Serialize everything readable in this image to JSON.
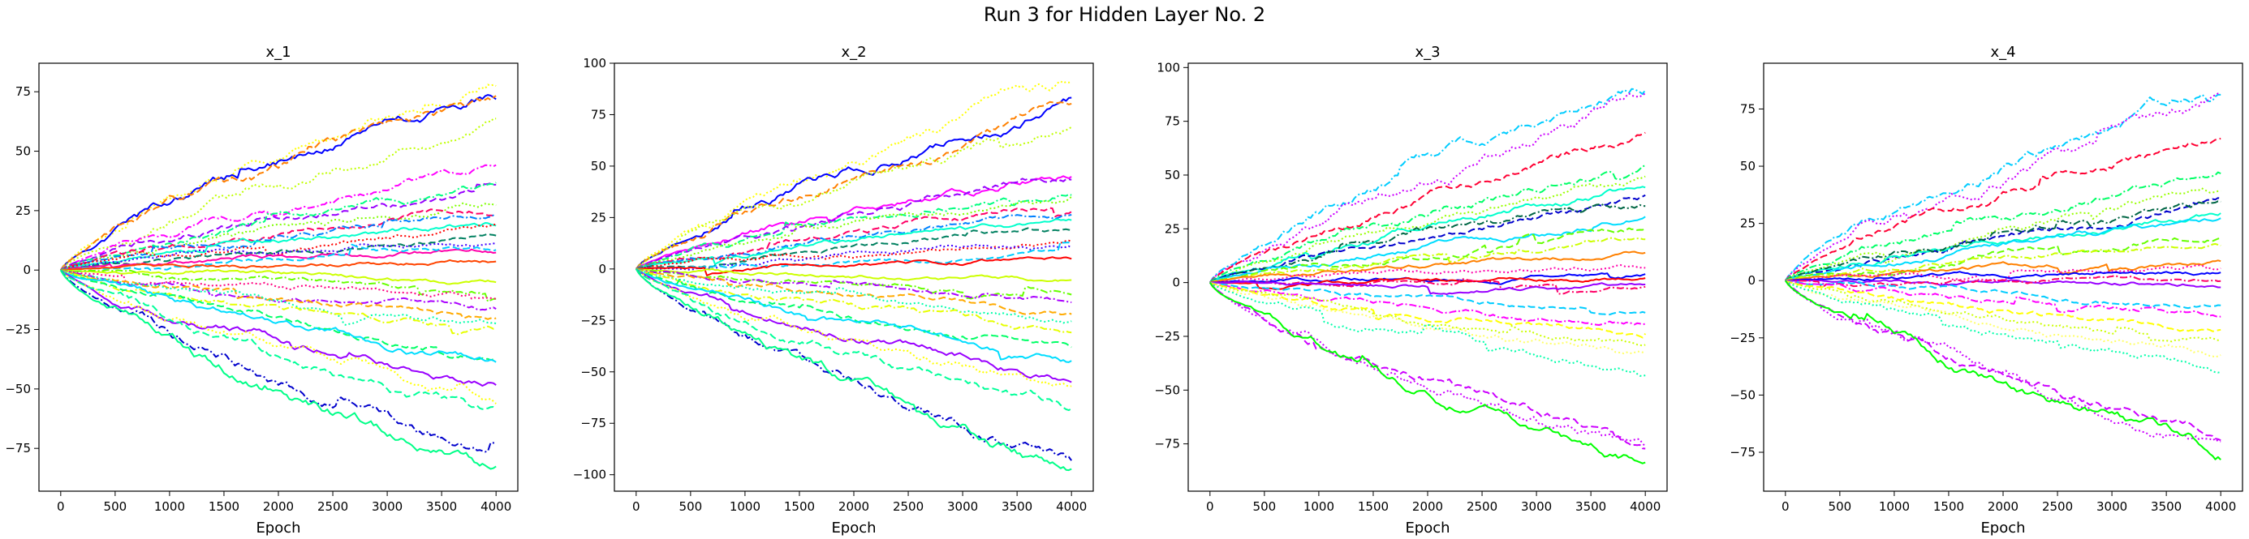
{
  "figure": {
    "title": "Run 3 for Hidden Layer No. 2"
  },
  "chart_data": [
    {
      "type": "line",
      "title": "x_1",
      "xlabel": "Epoch",
      "ylabel": "",
      "xlim": [
        -200,
        4200
      ],
      "ylim": [
        -93,
        87
      ],
      "xticks": [
        0,
        500,
        1000,
        1500,
        2000,
        2500,
        3000,
        3500,
        4000
      ],
      "yticks": [
        -75,
        -50,
        -25,
        0,
        25,
        50,
        75
      ],
      "grid": false,
      "series_finals": [
        {
          "color": "#ffff00",
          "style": "dotted",
          "final": 80
        },
        {
          "color": "#0000ff",
          "style": "solid",
          "final": 74
        },
        {
          "color": "#ff8000",
          "style": "dashed",
          "final": 70
        },
        {
          "color": "#c0ff00",
          "style": "dotted",
          "final": 62
        },
        {
          "color": "#ff00ff",
          "style": "dashdot",
          "final": 42
        },
        {
          "color": "#9900ff",
          "style": "dashed",
          "final": 37
        },
        {
          "color": "#00ff80",
          "style": "dashdot",
          "final": 34
        },
        {
          "color": "#80ff00",
          "style": "dotted",
          "final": 30
        },
        {
          "color": "#ff0066",
          "style": "dashed",
          "final": 26
        },
        {
          "color": "#0080ff",
          "style": "dashdot",
          "final": 22
        },
        {
          "color": "#00ffcc",
          "style": "solid",
          "final": 19
        },
        {
          "color": "#ff0000",
          "style": "dotted",
          "final": 16
        },
        {
          "color": "#008060",
          "style": "dashed",
          "final": 13
        },
        {
          "color": "#4000ff",
          "style": "dotted",
          "final": 11
        },
        {
          "color": "#ff00aa",
          "style": "solid",
          "final": 9
        },
        {
          "color": "#00ccff",
          "style": "dashed",
          "final": 7
        },
        {
          "color": "#ff4400",
          "style": "solid",
          "final": 4
        },
        {
          "color": "#ccff00",
          "style": "solid",
          "final": -5
        },
        {
          "color": "#66ff00",
          "style": "dashdot",
          "final": -9
        },
        {
          "color": "#ff0080",
          "style": "dotted",
          "final": -12
        },
        {
          "color": "#aa00ff",
          "style": "dashdot",
          "final": -16
        },
        {
          "color": "#ffaa00",
          "style": "dashed",
          "final": -19
        },
        {
          "color": "#00ffaa",
          "style": "dotted",
          "final": -22
        },
        {
          "color": "#e6ff00",
          "style": "dashdot",
          "final": -26
        },
        {
          "color": "#00ff66",
          "style": "dashed",
          "final": -34
        },
        {
          "color": "#00ddff",
          "style": "solid",
          "final": -40
        },
        {
          "color": "#9900ff",
          "style": "solid",
          "final": -46
        },
        {
          "color": "#ffff00",
          "style": "dotted",
          "final": -53
        },
        {
          "color": "#00ff99",
          "style": "dashed",
          "final": -62
        },
        {
          "color": "#0000cc",
          "style": "dashdot",
          "final": -80
        },
        {
          "color": "#00ff88",
          "style": "solid",
          "final": -87
        }
      ]
    },
    {
      "type": "line",
      "title": "x_2",
      "xlabel": "Epoch",
      "ylabel": "",
      "xlim": [
        -200,
        4200
      ],
      "ylim": [
        -108,
        100
      ],
      "xticks": [
        0,
        500,
        1000,
        1500,
        2000,
        2500,
        3000,
        3500,
        4000
      ],
      "yticks": [
        -100,
        -75,
        -50,
        -25,
        0,
        25,
        50,
        75,
        100
      ],
      "grid": false,
      "series_finals": [
        {
          "color": "#ffff00",
          "style": "dotted",
          "final": 90
        },
        {
          "color": "#0000ff",
          "style": "solid",
          "final": 82
        },
        {
          "color": "#ff8000",
          "style": "dashed",
          "final": 77
        },
        {
          "color": "#c0ff00",
          "style": "dotted",
          "final": 70
        },
        {
          "color": "#ff00ff",
          "style": "solid",
          "final": 47
        },
        {
          "color": "#9900ff",
          "style": "dashed",
          "final": 44
        },
        {
          "color": "#00ff80",
          "style": "dashdot",
          "final": 40
        },
        {
          "color": "#80ff00",
          "style": "dotted",
          "final": 36
        },
        {
          "color": "#ff0066",
          "style": "dashed",
          "final": 32
        },
        {
          "color": "#0080ff",
          "style": "dashdot",
          "final": 26
        },
        {
          "color": "#00ffcc",
          "style": "solid",
          "final": 22
        },
        {
          "color": "#008060",
          "style": "dashed",
          "final": 18
        },
        {
          "color": "#ff0000",
          "style": "dotted",
          "final": 14
        },
        {
          "color": "#4000ff",
          "style": "dotted",
          "final": 11
        },
        {
          "color": "#00ccff",
          "style": "dashed",
          "final": 8
        },
        {
          "color": "#ff0000",
          "style": "solid",
          "final": 5
        },
        {
          "color": "#ccff00",
          "style": "solid",
          "final": -6
        },
        {
          "color": "#66ff00",
          "style": "dashdot",
          "final": -12
        },
        {
          "color": "#aa00ff",
          "style": "dashdot",
          "final": -17
        },
        {
          "color": "#ffaa00",
          "style": "dashed",
          "final": -21
        },
        {
          "color": "#00ffaa",
          "style": "dotted",
          "final": -26
        },
        {
          "color": "#e6ff00",
          "style": "dashdot",
          "final": -30
        },
        {
          "color": "#00ff66",
          "style": "dashed",
          "final": -38
        },
        {
          "color": "#00ddff",
          "style": "solid",
          "final": -44
        },
        {
          "color": "#9900ff",
          "style": "solid",
          "final": -52
        },
        {
          "color": "#ffff00",
          "style": "dotted",
          "final": -58
        },
        {
          "color": "#00ff99",
          "style": "dashed",
          "final": -68
        },
        {
          "color": "#0000cc",
          "style": "dashdot",
          "final": -92
        },
        {
          "color": "#00ff88",
          "style": "solid",
          "final": -98
        }
      ]
    },
    {
      "type": "line",
      "title": "x_3",
      "xlabel": "Epoch",
      "ylabel": "",
      "xlim": [
        -200,
        4200
      ],
      "ylim": [
        -97,
        102
      ],
      "xticks": [
        0,
        500,
        1000,
        1500,
        2000,
        2500,
        3000,
        3500,
        4000
      ],
      "yticks": [
        -75,
        -50,
        -25,
        0,
        25,
        50,
        75,
        100
      ],
      "grid": false,
      "series_finals": [
        {
          "color": "#00ccff",
          "style": "dashdot",
          "final": 91
        },
        {
          "color": "#cc00ff",
          "style": "dotted",
          "final": 85
        },
        {
          "color": "#ff0033",
          "style": "dashed",
          "final": 68
        },
        {
          "color": "#00ff66",
          "style": "dashdot",
          "final": 55
        },
        {
          "color": "#99ff00",
          "style": "dotted",
          "final": 47
        },
        {
          "color": "#00ffcc",
          "style": "solid",
          "final": 44
        },
        {
          "color": "#0000cc",
          "style": "dashed",
          "final": 38
        },
        {
          "color": "#006644",
          "style": "dashdot",
          "final": 35
        },
        {
          "color": "#00ddff",
          "style": "solid",
          "final": 30
        },
        {
          "color": "#66ff00",
          "style": "dashed",
          "final": 24
        },
        {
          "color": "#ccff00",
          "style": "dashdot",
          "final": 20
        },
        {
          "color": "#ff8000",
          "style": "solid",
          "final": 13
        },
        {
          "color": "#ff00aa",
          "style": "dotted",
          "final": 8
        },
        {
          "color": "#0000ff",
          "style": "solid",
          "final": 4
        },
        {
          "color": "#ff0000",
          "style": "solid",
          "final": 2
        },
        {
          "color": "#ff0066",
          "style": "dashdot",
          "final": 0
        },
        {
          "color": "#9900ff",
          "style": "solid",
          "final": -2
        },
        {
          "color": "#00ccff",
          "style": "dashed",
          "final": -12
        },
        {
          "color": "#ff00ff",
          "style": "dashdot",
          "final": -18
        },
        {
          "color": "#ffff00",
          "style": "dashed",
          "final": -24
        },
        {
          "color": "#ccff00",
          "style": "dotted",
          "final": -30
        },
        {
          "color": "#ffff66",
          "style": "dotted",
          "final": -36
        },
        {
          "color": "#00ffaa",
          "style": "dotted",
          "final": -42
        },
        {
          "color": "#cc00ff",
          "style": "dashed",
          "final": -74
        },
        {
          "color": "#cc00ff",
          "style": "dotted",
          "final": -79
        },
        {
          "color": "#00ff00",
          "style": "solid",
          "final": -85
        }
      ]
    },
    {
      "type": "line",
      "title": "x_4",
      "xlabel": "Epoch",
      "ylabel": "",
      "xlim": [
        -200,
        4200
      ],
      "ylim": [
        -92,
        95
      ],
      "xticks": [
        0,
        500,
        1000,
        1500,
        2000,
        2500,
        3000,
        3500,
        4000
      ],
      "yticks": [
        -75,
        -50,
        -25,
        0,
        25,
        50,
        75
      ],
      "grid": false,
      "series_finals": [
        {
          "color": "#00ccff",
          "style": "dashdot",
          "final": 84
        },
        {
          "color": "#cc00ff",
          "style": "dotted",
          "final": 77
        },
        {
          "color": "#ff0033",
          "style": "dashed",
          "final": 62
        },
        {
          "color": "#00ff66",
          "style": "dashdot",
          "final": 49
        },
        {
          "color": "#99ff00",
          "style": "dotted",
          "final": 40
        },
        {
          "color": "#0000cc",
          "style": "dashed",
          "final": 34
        },
        {
          "color": "#00ffcc",
          "style": "solid",
          "final": 30
        },
        {
          "color": "#006644",
          "style": "dashdot",
          "final": 33
        },
        {
          "color": "#00ddff",
          "style": "solid",
          "final": 26
        },
        {
          "color": "#66ff00",
          "style": "dashed",
          "final": 20
        },
        {
          "color": "#ccff00",
          "style": "dashdot",
          "final": 15
        },
        {
          "color": "#ff8000",
          "style": "solid",
          "final": 8
        },
        {
          "color": "#ff00aa",
          "style": "dotted",
          "final": 5
        },
        {
          "color": "#0000ff",
          "style": "solid",
          "final": 3
        },
        {
          "color": "#9900ff",
          "style": "solid",
          "final": -1
        },
        {
          "color": "#ff0066",
          "style": "dashdot",
          "final": 0
        },
        {
          "color": "#00ccff",
          "style": "dashed",
          "final": -10
        },
        {
          "color": "#ff00ff",
          "style": "dashdot",
          "final": -16
        },
        {
          "color": "#ffff00",
          "style": "dashed",
          "final": -22
        },
        {
          "color": "#ccff00",
          "style": "dotted",
          "final": -27
        },
        {
          "color": "#ffff66",
          "style": "dotted",
          "final": -32
        },
        {
          "color": "#00ffaa",
          "style": "dotted",
          "final": -38
        },
        {
          "color": "#cc00ff",
          "style": "dashed",
          "final": -66
        },
        {
          "color": "#cc00ff",
          "style": "dotted",
          "final": -71
        },
        {
          "color": "#00ff00",
          "style": "solid",
          "final": -76
        }
      ]
    }
  ]
}
